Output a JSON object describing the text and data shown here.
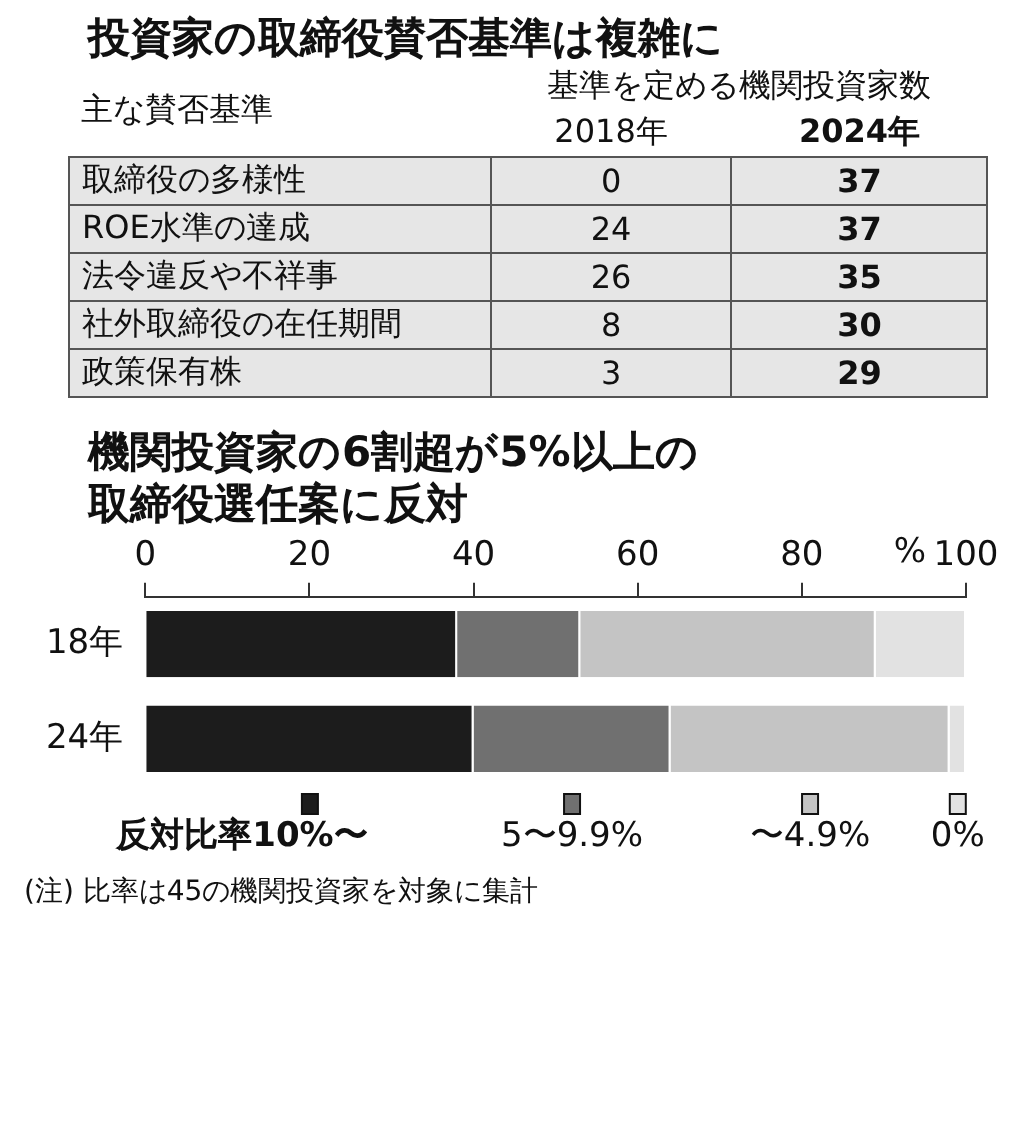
{
  "chart_data": [
    {
      "type": "other",
      "data_labels": true,
      "title": "投資家の取締役賛否基準は複雑に",
      "subtitle": "基準を定める機関投資家数",
      "ylabel": "主な賛否基準",
      "categories": [
        "取締役の多様性",
        "ROE水準の達成",
        "法令違反や不祥事",
        "社外取締役の在任期間",
        "政策保有株"
      ],
      "series": [
        {
          "name": "2018年",
          "values": [
            0,
            24,
            26,
            8,
            3
          ]
        },
        {
          "name": "2024年",
          "values": [
            37,
            37,
            35,
            30,
            29
          ]
        }
      ]
    },
    {
      "type": "bar",
      "orientation": "horizontal",
      "stacked": true,
      "title": "機関投資家の6割超が5%以上の取締役選任案に反対",
      "xlabel": "%",
      "legend_title": "反対比率",
      "legend": "bottom",
      "categories": [
        "18年",
        "24年"
      ],
      "xlim": [
        0,
        100
      ],
      "xticks": [
        0,
        20,
        40,
        60,
        80,
        100
      ],
      "series": [
        {
          "name": "10%〜",
          "color": "#1c1c1c",
          "values": [
            38,
            40
          ]
        },
        {
          "name": "5〜9.9%",
          "color": "#707070",
          "values": [
            15,
            24
          ]
        },
        {
          "name": "〜4.9%",
          "color": "#c4c4c4",
          "values": [
            36,
            34
          ]
        },
        {
          "name": "0%",
          "color": "#e2e2e2",
          "values": [
            11,
            2
          ]
        }
      ],
      "annotations": [
        "(注) 比率は45の機関投資家を対象に集計"
      ]
    }
  ]
}
